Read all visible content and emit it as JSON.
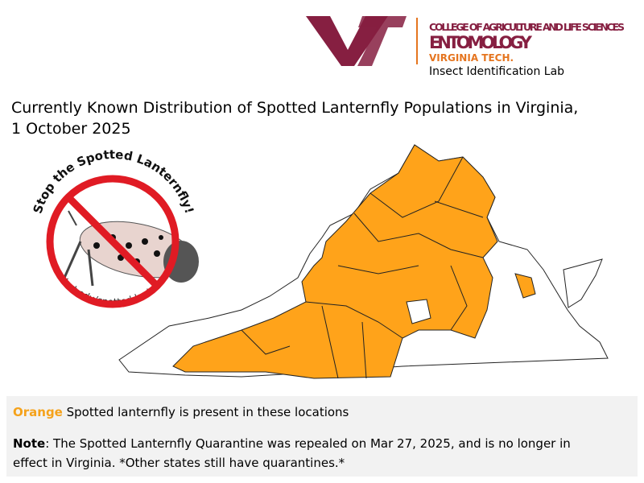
{
  "header": {
    "college": "COLLEGE OF AGRICULTURE AND LIFE SCIENCES",
    "department": "ENTOMOLOGY",
    "university": "VIRGINIA TECH.",
    "lab": "Insect Identification Lab"
  },
  "title": {
    "lines": [
      "Currently Known Distribution of Spotted Lanternfly Populations in Virginia,",
      "1 October 2025"
    ]
  },
  "badge": {
    "slogan": "Stop the Spotted Lanternfly!",
    "url": "ext.vt.edu/spotted-lanternfly"
  },
  "legend": {
    "color_word": "Orange",
    "text": " Spotted lanternfly is present in these locations"
  },
  "note": {
    "label": "Note",
    "lines": [
      ": The Spotted Lanternfly Quarantine was repealed on Mar 27, 2025, and is no longer in",
      "effect in Virginia. *Other states still have quarantines.*"
    ]
  }
}
